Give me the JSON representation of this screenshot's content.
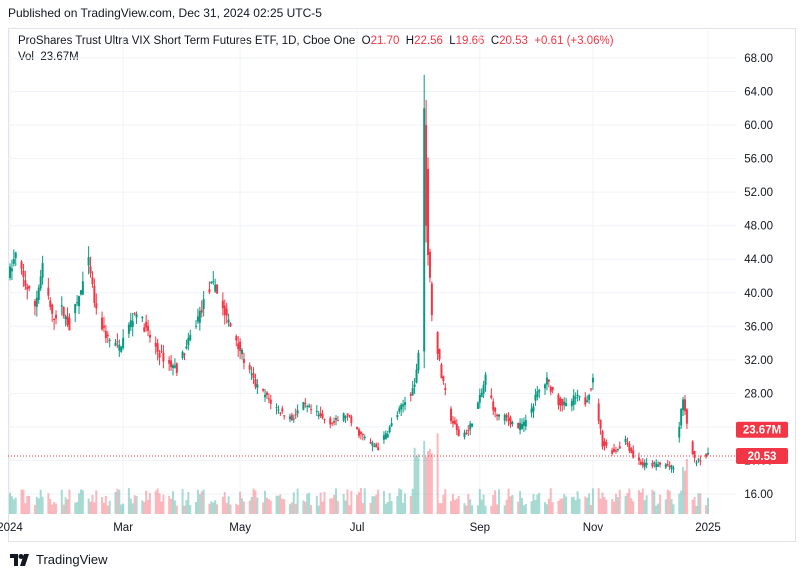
{
  "header": {
    "published": "Published on TradingView.com, Dec 31, 2024 02:25 UTC-5"
  },
  "legend": {
    "title": "ProShares Trust Ultra VIX Short Term Futures ETF, 1D, Cboe One",
    "o_label": "O",
    "o_value": "21.70",
    "h_label": "H",
    "h_value": "22.56",
    "l_label": "L",
    "l_value": "19.66",
    "c_label": "C",
    "c_value": "20.53",
    "change": "+0.61 (+3.06%)",
    "vol_label": "Vol",
    "vol_value": "23.67M"
  },
  "footer": {
    "brand": "TradingView",
    "brand_icon": "tradingview-logo-icon"
  },
  "colors": {
    "up": "#089981",
    "down": "#f23645",
    "grid": "#f0f3fa",
    "axis_text": "#131722",
    "price_line": "#f23645"
  },
  "chart_data": {
    "type": "candlestick",
    "title": "ProShares Trust Ultra VIX Short Term Futures ETF, 1D, Cboe One",
    "x_tick_labels": [
      "2024",
      "Mar",
      "May",
      "Jul",
      "Sep",
      "Nov",
      "2025"
    ],
    "y_tick_labels": [
      "16.00",
      "20.00",
      "24.00",
      "28.00",
      "32.00",
      "36.00",
      "40.00",
      "44.00",
      "48.00",
      "52.00",
      "56.00",
      "60.00",
      "64.00",
      "68.00"
    ],
    "ylim": [
      12.5,
      70.5
    ],
    "grid": true,
    "price_badges": [
      {
        "label": "23.67M",
        "value": 23.67,
        "color": "#f23645"
      },
      {
        "label": "20.53",
        "value": 20.53,
        "color": "#f23645"
      }
    ],
    "last_close": 20.53,
    "series": [
      {
        "name": "Price",
        "points": [
          [
            "2024-01-02",
            42.5
          ],
          [
            "2024-01-05",
            44.5
          ],
          [
            "2024-01-10",
            41.0
          ],
          [
            "2024-01-15",
            38.5
          ],
          [
            "2024-01-19",
            43.0
          ],
          [
            "2024-01-24",
            37.0
          ],
          [
            "2024-01-29",
            38.0
          ],
          [
            "2024-02-02",
            36.0
          ],
          [
            "2024-02-07",
            39.5
          ],
          [
            "2024-02-12",
            43.5
          ],
          [
            "2024-02-16",
            37.5
          ],
          [
            "2024-02-22",
            34.5
          ],
          [
            "2024-02-28",
            33.5
          ],
          [
            "2024-03-04",
            36.0
          ],
          [
            "2024-03-08",
            38.0
          ],
          [
            "2024-03-13",
            35.5
          ],
          [
            "2024-03-19",
            33.0
          ],
          [
            "2024-03-25",
            31.5
          ],
          [
            "2024-03-29",
            31.0
          ],
          [
            "2024-04-03",
            33.5
          ],
          [
            "2024-04-09",
            37.0
          ],
          [
            "2024-04-15",
            40.5
          ],
          [
            "2024-04-18",
            41.0
          ],
          [
            "2024-04-23",
            37.5
          ],
          [
            "2024-04-29",
            34.5
          ],
          [
            "2024-05-03",
            32.0
          ],
          [
            "2024-05-09",
            29.0
          ],
          [
            "2024-05-15",
            27.5
          ],
          [
            "2024-05-21",
            26.0
          ],
          [
            "2024-05-28",
            25.0
          ],
          [
            "2024-06-03",
            26.5
          ],
          [
            "2024-06-07",
            26.0
          ],
          [
            "2024-06-13",
            25.0
          ],
          [
            "2024-06-19",
            24.5
          ],
          [
            "2024-06-25",
            25.5
          ],
          [
            "2024-07-01",
            23.5
          ],
          [
            "2024-07-08",
            22.0
          ],
          [
            "2024-07-12",
            21.5
          ],
          [
            "2024-07-17",
            23.5
          ],
          [
            "2024-07-22",
            25.5
          ],
          [
            "2024-07-26",
            27.0
          ],
          [
            "2024-07-31",
            29.0
          ],
          [
            "2024-08-02",
            33.0
          ],
          [
            "2024-08-05",
            64.0
          ],
          [
            "2024-08-07",
            45.0
          ],
          [
            "2024-08-09",
            38.0
          ],
          [
            "2024-08-14",
            30.0
          ],
          [
            "2024-08-19",
            25.0
          ],
          [
            "2024-08-23",
            23.0
          ],
          [
            "2024-08-28",
            23.5
          ],
          [
            "2024-09-04",
            28.0
          ],
          [
            "2024-09-06",
            30.0
          ],
          [
            "2024-09-11",
            25.5
          ],
          [
            "2024-09-17",
            25.0
          ],
          [
            "2024-09-23",
            24.0
          ],
          [
            "2024-09-27",
            24.5
          ],
          [
            "2024-10-03",
            28.0
          ],
          [
            "2024-10-08",
            29.5
          ],
          [
            "2024-10-14",
            27.0
          ],
          [
            "2024-10-18",
            26.5
          ],
          [
            "2024-10-23",
            27.5
          ],
          [
            "2024-10-28",
            27.0
          ],
          [
            "2024-11-01",
            29.5
          ],
          [
            "2024-11-06",
            22.0
          ],
          [
            "2024-11-12",
            21.0
          ],
          [
            "2024-11-18",
            22.5
          ],
          [
            "2024-11-22",
            20.5
          ],
          [
            "2024-11-27",
            19.5
          ],
          [
            "2024-12-03",
            19.5
          ],
          [
            "2024-12-09",
            19.5
          ],
          [
            "2024-12-13",
            19.0
          ],
          [
            "2024-12-18",
            27.5
          ],
          [
            "2024-12-20",
            24.0
          ],
          [
            "2024-12-24",
            20.0
          ],
          [
            "2024-12-30",
            20.53
          ]
        ]
      }
    ]
  }
}
